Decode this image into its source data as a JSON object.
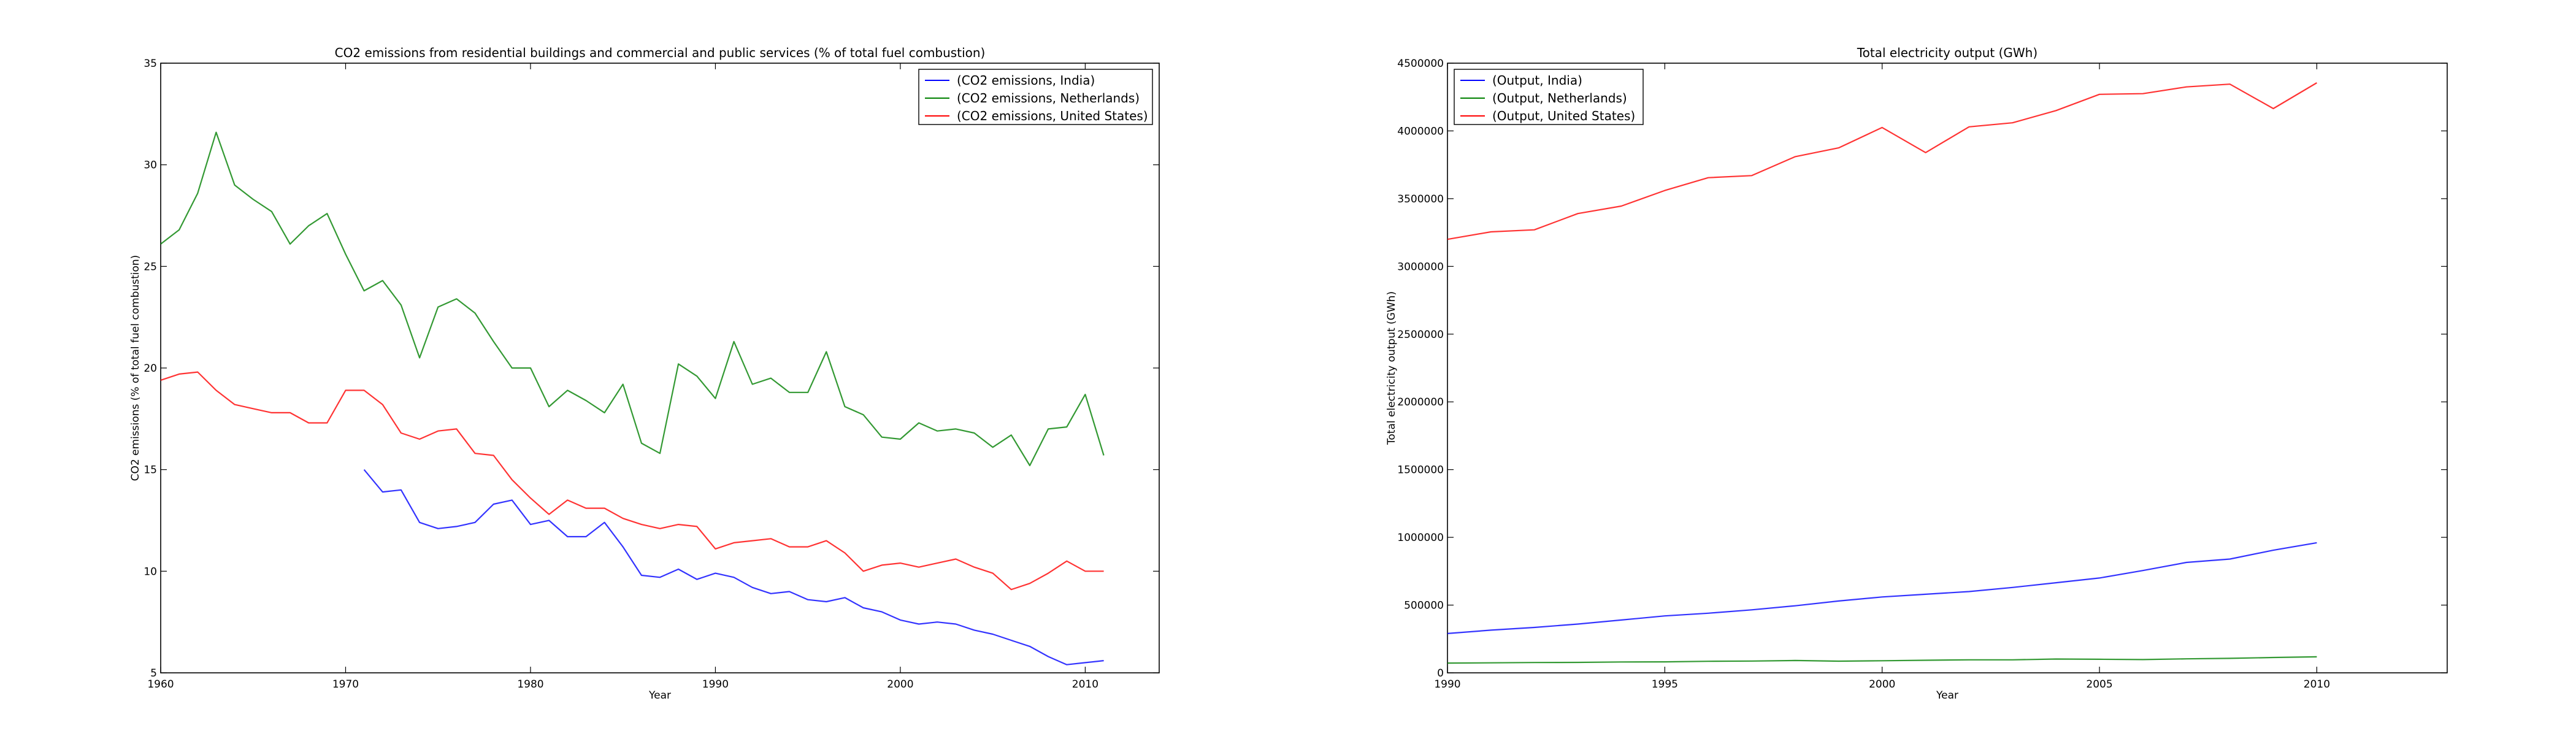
{
  "chart_data": [
    {
      "type": "line",
      "title": "CO2 emissions from residential buildings and commercial and public services (% of total fuel combustion)",
      "xlabel": "Year",
      "ylabel": "CO2 emissions (% of total fuel combustion)",
      "xlim": [
        1960,
        2014
      ],
      "ylim": [
        5,
        35
      ],
      "xticks": [
        1960,
        1970,
        1980,
        1990,
        2000,
        2010
      ],
      "yticks": [
        5,
        10,
        15,
        20,
        25,
        30,
        35
      ],
      "ytick_labels": [
        "5",
        "10",
        "15",
        "20",
        "25",
        "30",
        "35"
      ],
      "legend_position": "top-right",
      "series": [
        {
          "name": "(CO2 emissions, India)",
          "color": "#0000ff",
          "x": [
            1971,
            1972,
            1973,
            1974,
            1975,
            1976,
            1977,
            1978,
            1979,
            1980,
            1981,
            1982,
            1983,
            1984,
            1985,
            1986,
            1987,
            1988,
            1989,
            1990,
            1991,
            1992,
            1993,
            1994,
            1995,
            1996,
            1997,
            1998,
            1999,
            2000,
            2001,
            2002,
            2003,
            2004,
            2005,
            2006,
            2007,
            2008,
            2009,
            2010,
            2011
          ],
          "y": [
            15.0,
            13.9,
            14.0,
            12.4,
            12.1,
            12.2,
            12.4,
            13.3,
            13.5,
            12.3,
            12.5,
            11.7,
            11.7,
            12.4,
            11.2,
            9.8,
            9.7,
            10.1,
            9.6,
            9.9,
            9.7,
            9.2,
            8.9,
            9.0,
            8.6,
            8.5,
            8.7,
            8.2,
            8.0,
            7.6,
            7.4,
            7.5,
            7.4,
            7.1,
            6.9,
            6.6,
            6.3,
            5.8,
            5.4,
            5.5,
            5.6
          ]
        },
        {
          "name": "(CO2 emissions, Netherlands)",
          "color": "#008000",
          "x": [
            1960,
            1961,
            1962,
            1963,
            1964,
            1965,
            1966,
            1967,
            1968,
            1969,
            1970,
            1971,
            1972,
            1973,
            1974,
            1975,
            1976,
            1977,
            1978,
            1979,
            1980,
            1981,
            1982,
            1983,
            1984,
            1985,
            1986,
            1987,
            1988,
            1989,
            1990,
            1991,
            1992,
            1993,
            1994,
            1995,
            1996,
            1997,
            1998,
            1999,
            2000,
            2001,
            2002,
            2003,
            2004,
            2005,
            2006,
            2007,
            2008,
            2009,
            2010,
            2011
          ],
          "y": [
            26.1,
            26.8,
            28.6,
            31.6,
            29.0,
            28.3,
            27.7,
            26.1,
            27.0,
            27.6,
            25.6,
            23.8,
            24.3,
            23.1,
            20.5,
            23.0,
            23.4,
            22.7,
            21.3,
            20.0,
            20.0,
            18.1,
            18.9,
            18.4,
            17.8,
            19.2,
            16.3,
            15.8,
            20.2,
            19.6,
            18.5,
            21.3,
            19.2,
            19.5,
            18.8,
            18.8,
            20.8,
            18.1,
            17.7,
            16.6,
            16.5,
            17.3,
            16.9,
            17.0,
            16.8,
            16.1,
            16.7,
            15.2,
            17.0,
            17.1,
            18.7,
            15.7
          ]
        },
        {
          "name": "(CO2 emissions, United States)",
          "color": "#ff0000",
          "x": [
            1960,
            1961,
            1962,
            1963,
            1964,
            1965,
            1966,
            1967,
            1968,
            1969,
            1970,
            1971,
            1972,
            1973,
            1974,
            1975,
            1976,
            1977,
            1978,
            1979,
            1980,
            1981,
            1982,
            1983,
            1984,
            1985,
            1986,
            1987,
            1988,
            1989,
            1990,
            1991,
            1992,
            1993,
            1994,
            1995,
            1996,
            1997,
            1998,
            1999,
            2000,
            2001,
            2002,
            2003,
            2004,
            2005,
            2006,
            2007,
            2008,
            2009,
            2010,
            2011
          ],
          "y": [
            19.4,
            19.7,
            19.8,
            18.9,
            18.2,
            18.0,
            17.8,
            17.8,
            17.3,
            17.3,
            18.9,
            18.9,
            18.2,
            16.8,
            16.5,
            16.9,
            17.0,
            15.8,
            15.7,
            14.5,
            13.6,
            12.8,
            13.5,
            13.1,
            13.1,
            12.6,
            12.3,
            12.1,
            12.3,
            12.2,
            11.1,
            11.4,
            11.5,
            11.6,
            11.2,
            11.2,
            11.5,
            10.9,
            10.0,
            10.3,
            10.4,
            10.2,
            10.4,
            10.6,
            10.2,
            9.9,
            9.1,
            9.4,
            9.9,
            10.5,
            10.0,
            10.0
          ]
        }
      ]
    },
    {
      "type": "line",
      "title": "Total electricity output (GWh)",
      "xlabel": "Year",
      "ylabel": "Total electricity output (GWh)",
      "xlim": [
        1990,
        2013
      ],
      "ylim": [
        0,
        4500000
      ],
      "xticks": [
        1990,
        1995,
        2000,
        2005,
        2010
      ],
      "yticks": [
        0,
        500000,
        1000000,
        1500000,
        2000000,
        2500000,
        3000000,
        3500000,
        4000000,
        4500000
      ],
      "ytick_labels": [
        "0",
        "500000",
        "1000000",
        "1500000",
        "2000000",
        "2500000",
        "3000000",
        "3500000",
        "4000000",
        "4500000"
      ],
      "legend_position": "top-left",
      "series": [
        {
          "name": "(Output, India)",
          "color": "#0000ff",
          "x": [
            1990,
            1991,
            1992,
            1993,
            1994,
            1995,
            1996,
            1997,
            1998,
            1999,
            2000,
            2001,
            2002,
            2003,
            2004,
            2005,
            2006,
            2007,
            2008,
            2009,
            2010
          ],
          "y": [
            290000,
            315000,
            335000,
            360000,
            390000,
            420000,
            440000,
            465000,
            495000,
            530000,
            560000,
            580000,
            600000,
            630000,
            665000,
            700000,
            755000,
            815000,
            840000,
            905000,
            960000
          ]
        },
        {
          "name": "(Output, Netherlands)",
          "color": "#008000",
          "x": [
            1990,
            1991,
            1992,
            1993,
            1994,
            1995,
            1996,
            1997,
            1998,
            1999,
            2000,
            2001,
            2002,
            2003,
            2004,
            2005,
            2006,
            2007,
            2008,
            2009,
            2010
          ],
          "y": [
            72000,
            74000,
            76000,
            77000,
            80000,
            81000,
            85000,
            87000,
            91000,
            86000,
            89000,
            93000,
            96000,
            96000,
            102000,
            100000,
            98000,
            103000,
            107000,
            113000,
            118000
          ]
        },
        {
          "name": "(Output, United States)",
          "color": "#ff0000",
          "x": [
            1990,
            1991,
            1992,
            1993,
            1994,
            1995,
            1996,
            1997,
            1998,
            1999,
            2000,
            2001,
            2002,
            2003,
            2004,
            2005,
            2006,
            2007,
            2008,
            2009,
            2010
          ],
          "y": [
            3200000,
            3255000,
            3270000,
            3390000,
            3445000,
            3560000,
            3655000,
            3670000,
            3810000,
            3875000,
            4025000,
            3840000,
            4030000,
            4060000,
            4150000,
            4270000,
            4275000,
            4325000,
            4345000,
            4165000,
            4355000
          ]
        }
      ]
    }
  ]
}
